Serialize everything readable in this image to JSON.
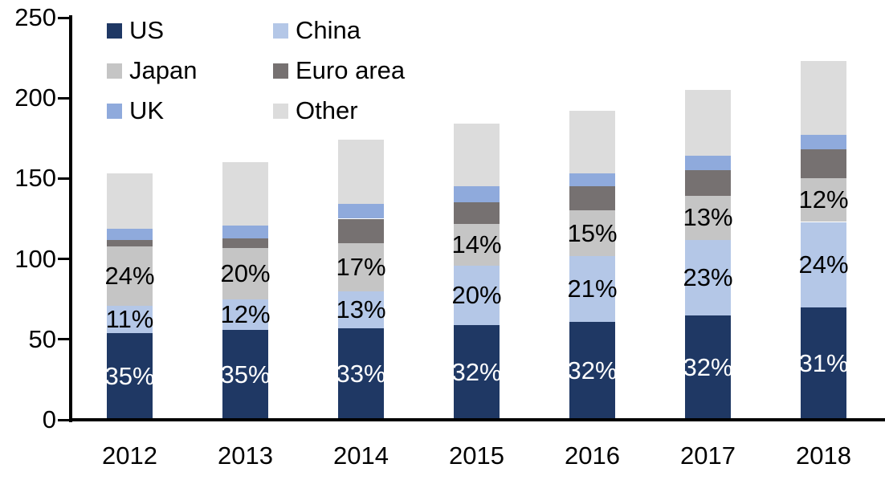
{
  "chart_data": {
    "type": "bar",
    "subtype": "stacked-bar",
    "title": "",
    "categories": [
      "2012",
      "2013",
      "2014",
      "2015",
      "2016",
      "2017",
      "2018"
    ],
    "series": [
      {
        "name": "US",
        "color": "#1f3864",
        "values": [
          54,
          56,
          57,
          59,
          61,
          65,
          70
        ],
        "pct_labels": [
          "35%",
          "35%",
          "33%",
          "32%",
          "32%",
          "32%",
          "31%"
        ],
        "pct_label_color": "#ffffff"
      },
      {
        "name": "China",
        "color": "#b4c7e7",
        "values": [
          17,
          19,
          23,
          37,
          41,
          47,
          53
        ],
        "pct_labels": [
          "11%",
          "12%",
          "13%",
          "20%",
          "21%",
          "23%",
          "24%"
        ],
        "pct_label_color": "#000000"
      },
      {
        "name": "Japan",
        "color": "#c5c5c5",
        "values": [
          37,
          32,
          30,
          26,
          28,
          27,
          27
        ],
        "pct_labels": [
          "24%",
          "20%",
          "17%",
          "14%",
          "15%",
          "13%",
          "12%"
        ],
        "pct_label_color": "#000000"
      },
      {
        "name": "Euro area",
        "color": "#767171",
        "values": [
          4,
          6,
          15,
          13,
          15,
          16,
          18
        ],
        "pct_labels": null,
        "pct_label_color": null
      },
      {
        "name": "UK",
        "color": "#8faadc",
        "values": [
          7,
          8,
          9,
          10,
          8,
          9,
          9
        ],
        "pct_labels": null,
        "pct_label_color": null
      },
      {
        "name": "Other",
        "color": "#dcdcdc",
        "values": [
          34,
          39,
          40,
          39,
          39,
          41,
          46
        ],
        "pct_labels": null,
        "pct_label_color": null
      }
    ],
    "stack_order_bottom_to_top": [
      "US",
      "China",
      "Japan",
      "Euro area",
      "UK",
      "Other"
    ],
    "totals_approx": [
      153,
      160,
      174,
      184,
      192,
      205,
      223
    ],
    "y_axis": {
      "min": 0,
      "max": 250,
      "step": 50,
      "tick_labels": [
        "0",
        "50",
        "100",
        "150",
        "200",
        "250"
      ]
    },
    "x_axis": {
      "tick_labels": [
        "2012",
        "2013",
        "2014",
        "2015",
        "2016",
        "2017",
        "2018"
      ]
    },
    "legend": {
      "position": "top-left",
      "columns": 2,
      "items": [
        "US",
        "China",
        "Japan",
        "Euro area",
        "UK",
        "Other"
      ]
    },
    "grid": false,
    "colors": {
      "axis": "#000000",
      "background": "#ffffff",
      "inside_label_light": "#ffffff",
      "outside_label_dark": "#000000"
    }
  }
}
